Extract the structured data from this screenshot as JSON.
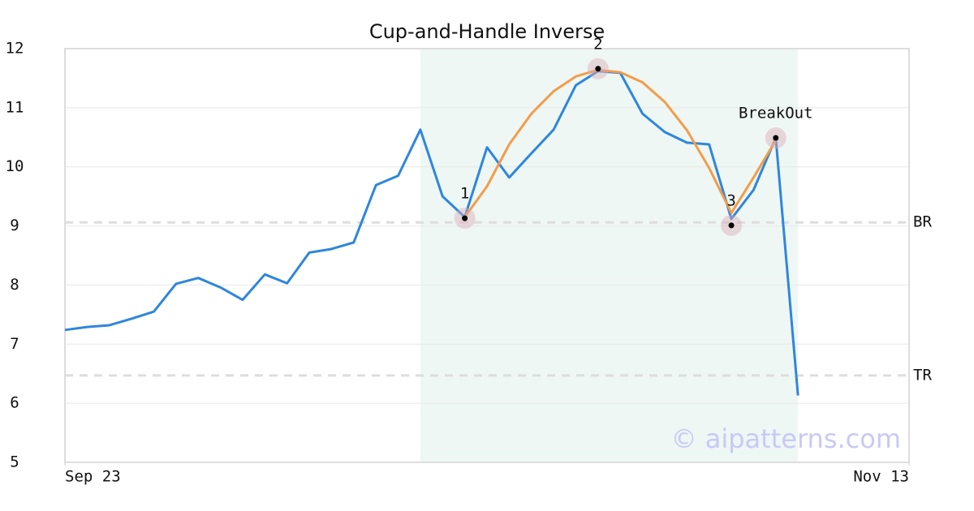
{
  "chart_data": {
    "type": "line",
    "title": "Cup-and-Handle Inverse",
    "x": [
      0,
      1,
      2,
      3,
      4,
      5,
      6,
      7,
      8,
      9,
      10,
      11,
      12,
      13,
      14,
      15,
      16,
      17,
      18,
      19,
      20,
      21,
      22,
      23,
      24,
      25,
      26,
      27,
      28,
      29,
      30,
      31,
      32,
      33
    ],
    "xlim": [
      0,
      38
    ],
    "xticks": [
      {
        "value": 0,
        "label": "Sep 23"
      },
      {
        "value": 38,
        "label": "Nov 13"
      }
    ],
    "ylim": [
      5,
      12
    ],
    "yticks": [
      5,
      6,
      7,
      8,
      9,
      10,
      11,
      12
    ],
    "grid": true,
    "series": [
      {
        "color": "#2e86de",
        "values": [
          7.24,
          7.29,
          7.32,
          7.43,
          7.55,
          8.02,
          8.12,
          7.96,
          7.75,
          8.18,
          8.03,
          8.55,
          8.61,
          8.72,
          9.69,
          9.85,
          10.63,
          9.5,
          9.15,
          10.33,
          9.82,
          10.23,
          10.63,
          11.38,
          11.62,
          11.59,
          10.9,
          10.59,
          10.41,
          10.38,
          9.12,
          9.61,
          10.49,
          6.13
        ]
      },
      {
        "color": "#f39c4a",
        "x": [
          18,
          19,
          20,
          21,
          22,
          23,
          24,
          25,
          26,
          27,
          28,
          29,
          30,
          31,
          32
        ],
        "values": [
          9.15,
          9.67,
          10.38,
          10.9,
          11.28,
          11.53,
          11.64,
          11.6,
          11.43,
          11.1,
          10.62,
          9.98,
          9.22,
          9.82,
          10.45
        ]
      }
    ],
    "highlight_xrange": [
      16,
      33
    ],
    "highlight_color": "#eef7f3",
    "points": [
      {
        "label": "1",
        "x": 18,
        "y": 9.13
      },
      {
        "label": "2",
        "x": 24,
        "y": 11.66
      },
      {
        "label": "3",
        "x": 30,
        "y": 9.01
      },
      {
        "label": "BreakOut",
        "x": 32,
        "y": 10.49
      }
    ],
    "levels": [
      {
        "label": "BR",
        "value": 9.06
      },
      {
        "label": "TR",
        "value": 6.47
      }
    ],
    "watermark": "© aipatterns.com"
  }
}
